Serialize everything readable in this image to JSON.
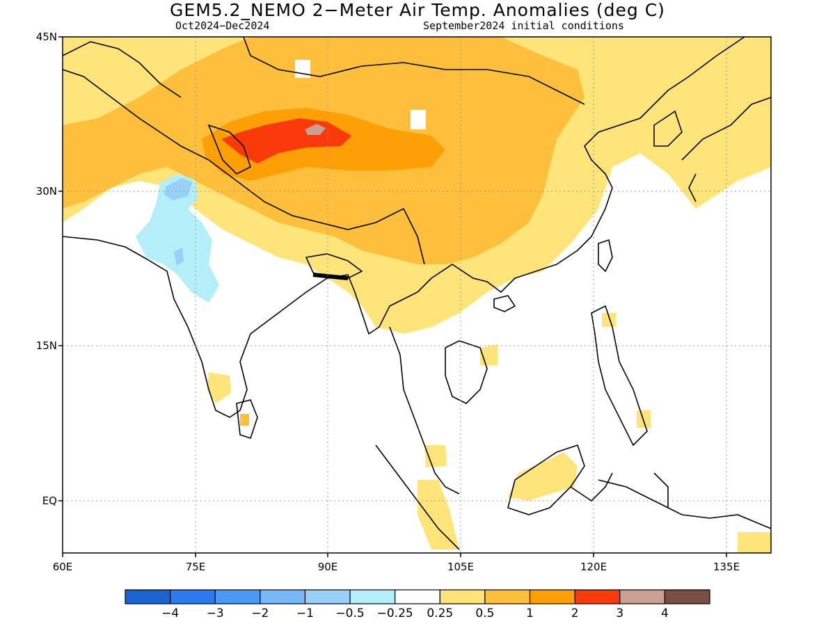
{
  "header": {
    "title": "GEM5.2_NEMO 2−Meter Air Temp. Anomalies (deg C)",
    "period": "Oct2024−Dec2024",
    "init": "September2024 initial conditions"
  },
  "axes": {
    "lat_labels": [
      "45N",
      "30N",
      "15N",
      "EQ"
    ],
    "lon_labels": [
      "60E",
      "75E",
      "90E",
      "105E",
      "120E",
      "135E"
    ],
    "lat_values": [
      45,
      30,
      15,
      0
    ],
    "lon_values": [
      60,
      75,
      90,
      105,
      120,
      135
    ],
    "lon_range": [
      60,
      140
    ],
    "lat_range": [
      -5,
      45
    ]
  },
  "colorbar": {
    "labels": [
      "−4",
      "−3",
      "−2",
      "−1",
      "−0.5",
      "−0.25",
      "0.25",
      "0.5",
      "1",
      "2",
      "3",
      "4"
    ],
    "colors": [
      "#1a64d2",
      "#2b7af0",
      "#4a9af5",
      "#78b8f8",
      "#98d0fa",
      "#b4eef8",
      "#ffffff",
      "#ffe47a",
      "#fdbf3c",
      "#fd9f05",
      "#fb3a0c",
      "#c9a092",
      "#7a4e42"
    ]
  },
  "map_colors": {
    "land_outline": "#000000",
    "grid": "#9a9a9a"
  }
}
